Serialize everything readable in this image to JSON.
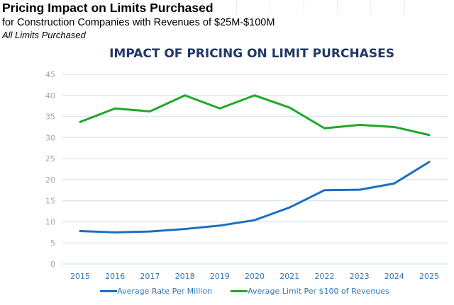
{
  "header": {
    "title": "Pricing Impact on Limits Purchased",
    "subtitle": "for Construction Companies with Revenues of $25M-$100M",
    "note": "All Limits Purchased"
  },
  "colors": {
    "rate": "#1a6fc4",
    "limit": "#1fa82a",
    "grid": "#dbe9f4",
    "title": "#1f3864"
  },
  "chart_data": {
    "type": "line",
    "title": "IMPACT OF PRICING ON LIMIT PURCHASES",
    "xlabel": "",
    "ylabel": "",
    "x": [
      "2015",
      "2016",
      "2017",
      "2018",
      "2019",
      "2020",
      "2021",
      "2022",
      "2023",
      "2024",
      "2025"
    ],
    "ylim": [
      0,
      45
    ],
    "yticks": [
      0,
      5,
      10,
      15,
      20,
      25,
      30,
      35,
      40,
      45
    ],
    "grid": true,
    "legend": "bottom",
    "series": [
      {
        "name": "Average Rate Per Million",
        "color_key": "rate",
        "values": [
          7.8,
          7.5,
          7.7,
          8.3,
          9.1,
          10.4,
          13.4,
          17.5,
          17.6,
          19.1,
          24.2
        ]
      },
      {
        "name": "Average Limit Per $100 of Revenues",
        "color_key": "limit",
        "values": [
          33.7,
          36.9,
          36.2,
          40.0,
          36.9,
          40.0,
          37.1,
          32.2,
          33.0,
          32.5,
          30.6
        ]
      }
    ]
  }
}
